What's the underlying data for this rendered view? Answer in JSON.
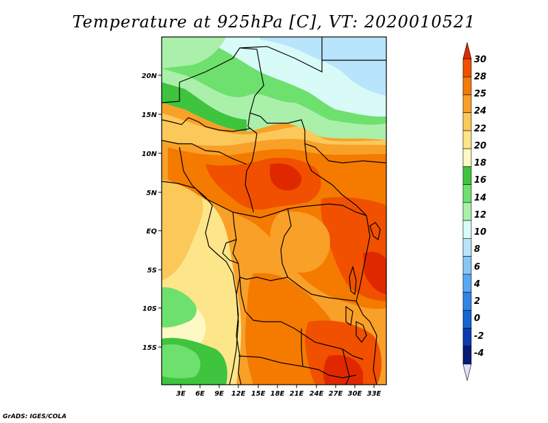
{
  "title": "Temperature at 925hPa [C], VT: 2020010521",
  "credit": "GrADS: IGES/COLA",
  "lat_ticks": [
    "20N",
    "15N",
    "10N",
    "5N",
    "EQ",
    "5S",
    "10S",
    "15S"
  ],
  "lon_ticks": [
    "3E",
    "6E",
    "9E",
    "12E",
    "15E",
    "18E",
    "21E",
    "24E",
    "27E",
    "30E",
    "33E"
  ],
  "colorbar": {
    "levels": [
      "30",
      "28",
      "25",
      "24",
      "22",
      "20",
      "18",
      "16",
      "14",
      "12",
      "10",
      "8",
      "6",
      "4",
      "2",
      "0",
      "-2",
      "-4"
    ],
    "colors": [
      "#e02800",
      "#f05000",
      "#f57a00",
      "#f8a028",
      "#fbc85a",
      "#fde58a",
      "#fef8c4",
      "#3ec43e",
      "#6ee06e",
      "#aaf0aa",
      "#d8fbf8",
      "#b8e4fc",
      "#86c6f8",
      "#58a8f2",
      "#2e86e6",
      "#1464d2",
      "#0a3cb0",
      "#061a78",
      "#e0e0ff"
    ]
  }
}
